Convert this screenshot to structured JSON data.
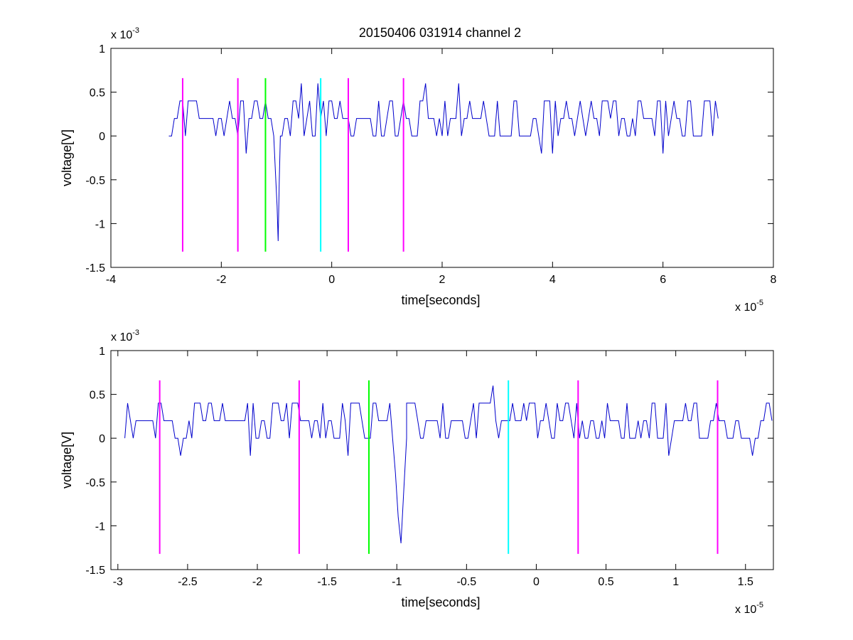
{
  "figure": {
    "title": "20150406 031914 channel 2",
    "background": "#ffffff"
  },
  "chart_data": [
    {
      "type": "line",
      "title": "20150406 031914 channel 2",
      "xlabel": "time[seconds]",
      "ylabel": "voltage[V]",
      "x_multiplier": "x 10",
      "x_exponent": "-5",
      "y_multiplier": "x 10",
      "y_exponent": "-3",
      "xlim": [
        -4,
        8
      ],
      "ylim": [
        -1.5,
        1
      ],
      "xticks": [
        -4,
        -2,
        0,
        2,
        4,
        6,
        8
      ],
      "xtick_labels": [
        "-4",
        "-2",
        "0",
        "2",
        "4",
        "6",
        "8"
      ],
      "yticks": [
        -1.5,
        -1,
        -0.5,
        0,
        0.5,
        1
      ],
      "ytick_labels": [
        "-1.5",
        "-1",
        "-0.5",
        "0",
        "0.5",
        "1"
      ],
      "grid": false,
      "series": [
        {
          "color": "#0000cc",
          "x_range": [
            -2.95,
            7.0
          ],
          "baseline_levels": [
            0,
            0.2,
            0.4
          ],
          "pulse": {
            "x": [
              -1.05,
              -1.02,
              -0.99,
              -0.97,
              -0.95,
              -0.93
            ],
            "y": [
              0.0,
              -0.4,
              -0.8,
              -1.2,
              -0.5,
              0.0
            ]
          },
          "spikes": [
            {
              "x": -1.55,
              "y": -0.2
            },
            {
              "x": -0.25,
              "y": 0.6
            },
            {
              "x": -0.55,
              "y": 0.6
            },
            {
              "x": 1.7,
              "y": 0.6
            },
            {
              "x": 2.3,
              "y": 0.6
            },
            {
              "x": 3.8,
              "y": -0.2
            },
            {
              "x": 4.0,
              "y": -0.2
            },
            {
              "x": 6.0,
              "y": -0.2
            }
          ]
        }
      ],
      "markers": [
        {
          "x": -2.7,
          "color": "#ff00ff"
        },
        {
          "x": -1.7,
          "color": "#ff00ff"
        },
        {
          "x": -1.2,
          "color": "#00ff00"
        },
        {
          "x": -0.2,
          "color": "#00ffff"
        },
        {
          "x": 0.3,
          "color": "#ff00ff"
        },
        {
          "x": 1.3,
          "color": "#ff00ff"
        }
      ],
      "marker_range": [
        -1.32,
        0.66
      ]
    },
    {
      "type": "line",
      "title": "",
      "xlabel": "time[seconds]",
      "ylabel": "voltage[V]",
      "x_multiplier": "x 10",
      "x_exponent": "-5",
      "y_multiplier": "x 10",
      "y_exponent": "-3",
      "xlim": [
        -3.05,
        1.7
      ],
      "ylim": [
        -1.5,
        1
      ],
      "xticks": [
        -3,
        -2.5,
        -2,
        -1.5,
        -1,
        -0.5,
        0,
        0.5,
        1,
        1.5
      ],
      "xtick_labels": [
        "-3",
        "-2.5",
        "-2",
        "-1.5",
        "-1",
        "-0.5",
        "0",
        "0.5",
        "1",
        "1.5"
      ],
      "yticks": [
        -1.5,
        -1,
        -0.5,
        0,
        0.5,
        1
      ],
      "ytick_labels": [
        "-1.5",
        "-1",
        "-0.5",
        "0",
        "0.5",
        "1"
      ],
      "grid": false,
      "series": [
        {
          "color": "#0000cc",
          "x_range": [
            -2.95,
            1.7
          ],
          "baseline_levels": [
            0,
            0.2,
            0.4
          ],
          "pulse": {
            "x": [
              -1.03,
              -1.01,
              -0.99,
              -0.97,
              -0.95,
              -0.93
            ],
            "y": [
              0.0,
              -0.4,
              -0.9,
              -1.2,
              -0.6,
              0.0
            ]
          },
          "spikes": [
            {
              "x": -2.55,
              "y": -0.2
            },
            {
              "x": -2.05,
              "y": -0.2
            },
            {
              "x": -1.35,
              "y": -0.2
            },
            {
              "x": -0.3,
              "y": 0.6
            },
            {
              "x": 0.95,
              "y": -0.2
            },
            {
              "x": 1.55,
              "y": -0.2
            }
          ]
        }
      ],
      "markers": [
        {
          "x": -2.7,
          "color": "#ff00ff"
        },
        {
          "x": -1.7,
          "color": "#ff00ff"
        },
        {
          "x": -1.2,
          "color": "#00ff00"
        },
        {
          "x": -0.2,
          "color": "#00ffff"
        },
        {
          "x": 0.3,
          "color": "#ff00ff"
        },
        {
          "x": 1.3,
          "color": "#ff00ff"
        }
      ],
      "marker_range": [
        -1.32,
        0.66
      ]
    }
  ]
}
